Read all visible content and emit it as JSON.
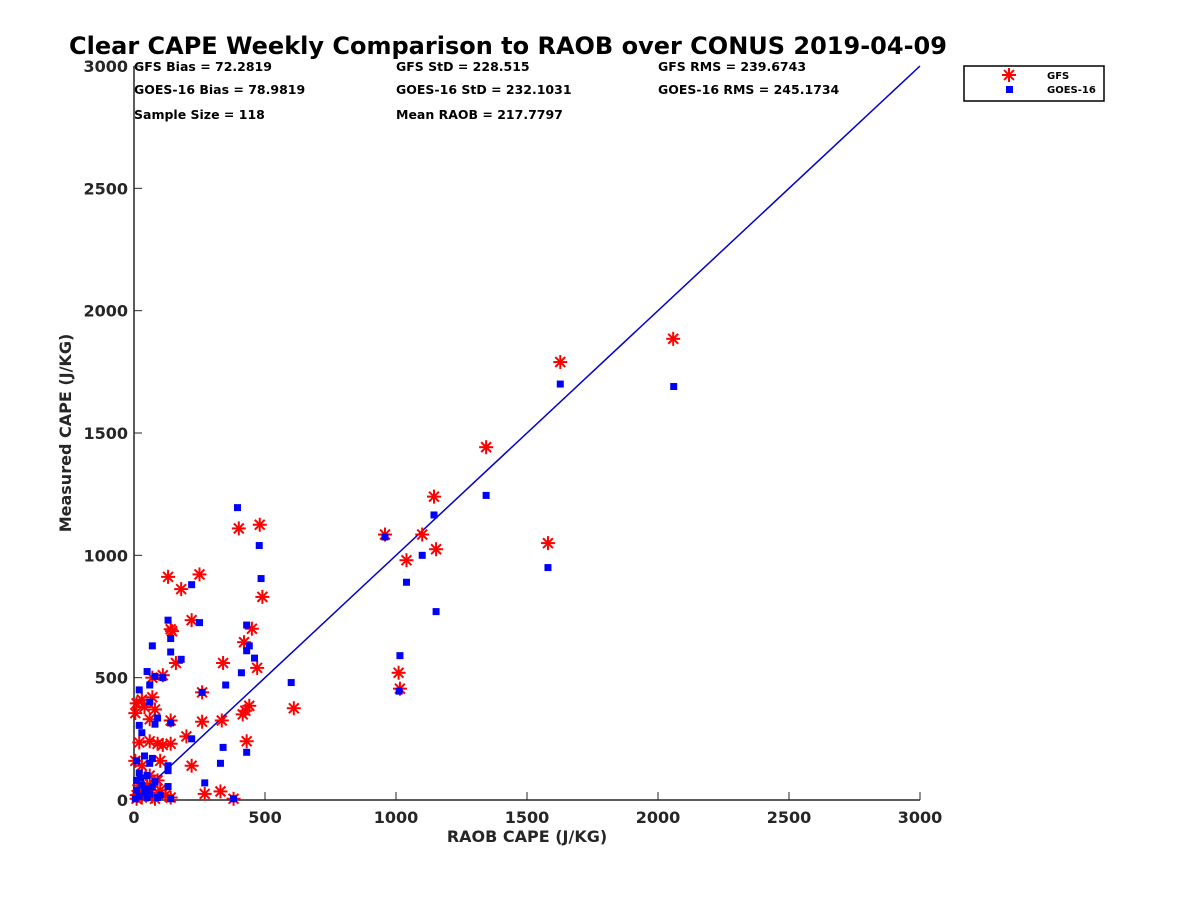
{
  "chart_data": {
    "type": "scatter",
    "title": "Clear CAPE Weekly Comparison to RAOB over CONUS 2019-04-09",
    "xlabel": "RAOB CAPE (J/KG)",
    "ylabel": "Measured CAPE (J/KG)",
    "xlim": [
      0,
      3000
    ],
    "ylim": [
      0,
      3000
    ],
    "xticks": [
      0,
      500,
      1000,
      1500,
      2000,
      2500,
      3000
    ],
    "yticks": [
      0,
      500,
      1000,
      1500,
      2000,
      2500,
      3000
    ],
    "xtick_labels": [
      "0",
      "500",
      "1000",
      "1500",
      "2000",
      "2500",
      "3000"
    ],
    "ytick_labels": [
      "0",
      "500",
      "1000",
      "1500",
      "2000",
      "2500",
      "3000"
    ],
    "grid": false,
    "legend_position": "top-right",
    "stats": {
      "gfs_bias": "GFS Bias = 72.2819",
      "goes_bias": "GOES-16 Bias = 78.9819",
      "sample_size": "Sample Size = 118",
      "gfs_std": "GFS StD = 228.515",
      "goes_std": "GOES-16 StD = 232.1031",
      "mean_raob": "Mean RAOB = 217.7797",
      "gfs_rms": "GFS RMS = 239.6743",
      "goes_rms": "GOES-16 RMS = 245.1734"
    },
    "reference_line": {
      "x": [
        0,
        3000
      ],
      "y": [
        0,
        3000
      ],
      "color": "#0000cc"
    },
    "series": [
      {
        "name": "GFS",
        "marker": "asterisk",
        "color": "#ff0000",
        "points": [
          [
            2058,
            1885
          ],
          [
            1627,
            1790
          ],
          [
            1344,
            1442
          ],
          [
            1145,
            1240
          ],
          [
            1580,
            1050
          ],
          [
            958,
            1085
          ],
          [
            1100,
            1085
          ],
          [
            1153,
            1025
          ],
          [
            1040,
            980
          ],
          [
            1010,
            520
          ],
          [
            1015,
            455
          ],
          [
            480,
            1125
          ],
          [
            400,
            1110
          ],
          [
            490,
            830
          ],
          [
            130,
            912
          ],
          [
            250,
            922
          ],
          [
            180,
            862
          ],
          [
            220,
            735
          ],
          [
            140,
            698
          ],
          [
            145,
            690
          ],
          [
            450,
            700
          ],
          [
            420,
            645
          ],
          [
            160,
            560
          ],
          [
            340,
            560
          ],
          [
            470,
            540
          ],
          [
            110,
            510
          ],
          [
            70,
            500
          ],
          [
            70,
            420
          ],
          [
            30,
            410
          ],
          [
            10,
            395
          ],
          [
            260,
            440
          ],
          [
            40,
            380
          ],
          [
            5,
            355
          ],
          [
            80,
            370
          ],
          [
            260,
            320
          ],
          [
            140,
            325
          ],
          [
            60,
            330
          ],
          [
            335,
            325
          ],
          [
            440,
            385
          ],
          [
            425,
            365
          ],
          [
            415,
            350
          ],
          [
            610,
            375
          ],
          [
            200,
            260
          ],
          [
            20,
            235
          ],
          [
            60,
            240
          ],
          [
            90,
            230
          ],
          [
            110,
            225
          ],
          [
            140,
            230
          ],
          [
            430,
            240
          ],
          [
            5,
            160
          ],
          [
            100,
            160
          ],
          [
            220,
            140
          ],
          [
            30,
            140
          ],
          [
            60,
            100
          ],
          [
            90,
            80
          ],
          [
            20,
            60
          ],
          [
            40,
            40
          ],
          [
            10,
            20
          ],
          [
            30,
            10
          ],
          [
            60,
            30
          ],
          [
            80,
            5
          ],
          [
            120,
            20
          ],
          [
            140,
            10
          ],
          [
            270,
            25
          ],
          [
            330,
            35
          ],
          [
            380,
            5
          ],
          [
            10,
            5
          ],
          [
            50,
            60
          ],
          [
            70,
            15
          ],
          [
            100,
            40
          ]
        ]
      },
      {
        "name": "GOES-16",
        "marker": "square",
        "color": "#0000ff",
        "points": [
          [
            2060,
            1690
          ],
          [
            1627,
            1700
          ],
          [
            1344,
            1245
          ],
          [
            1145,
            1165
          ],
          [
            1580,
            950
          ],
          [
            958,
            1075
          ],
          [
            1100,
            1000
          ],
          [
            1040,
            890
          ],
          [
            1153,
            770
          ],
          [
            1015,
            590
          ],
          [
            1012,
            445
          ],
          [
            395,
            1195
          ],
          [
            478,
            1040
          ],
          [
            485,
            905
          ],
          [
            220,
            880
          ],
          [
            130,
            735
          ],
          [
            250,
            725
          ],
          [
            430,
            715
          ],
          [
            70,
            630
          ],
          [
            140,
            660
          ],
          [
            440,
            630
          ],
          [
            140,
            605
          ],
          [
            430,
            610
          ],
          [
            460,
            580
          ],
          [
            180,
            575
          ],
          [
            410,
            520
          ],
          [
            50,
            525
          ],
          [
            80,
            505
          ],
          [
            110,
            500
          ],
          [
            20,
            450
          ],
          [
            60,
            470
          ],
          [
            350,
            470
          ],
          [
            600,
            480
          ],
          [
            260,
            440
          ],
          [
            60,
            400
          ],
          [
            90,
            335
          ],
          [
            140,
            315
          ],
          [
            80,
            310
          ],
          [
            20,
            305
          ],
          [
            30,
            275
          ],
          [
            220,
            250
          ],
          [
            340,
            215
          ],
          [
            430,
            195
          ],
          [
            40,
            180
          ],
          [
            70,
            170
          ],
          [
            10,
            160
          ],
          [
            60,
            150
          ],
          [
            330,
            150
          ],
          [
            130,
            140
          ],
          [
            130,
            120
          ],
          [
            20,
            110
          ],
          [
            50,
            100
          ],
          [
            10,
            80
          ],
          [
            80,
            75
          ],
          [
            270,
            70
          ],
          [
            30,
            60
          ],
          [
            130,
            55
          ],
          [
            10,
            40
          ],
          [
            40,
            30
          ],
          [
            60,
            25
          ],
          [
            20,
            15
          ],
          [
            90,
            10
          ],
          [
            140,
            5
          ],
          [
            380,
            5
          ],
          [
            5,
            5
          ],
          [
            45,
            45
          ],
          [
            70,
            55
          ],
          [
            100,
            20
          ],
          [
            25,
            90
          ],
          [
            50,
            10
          ]
        ]
      }
    ]
  }
}
